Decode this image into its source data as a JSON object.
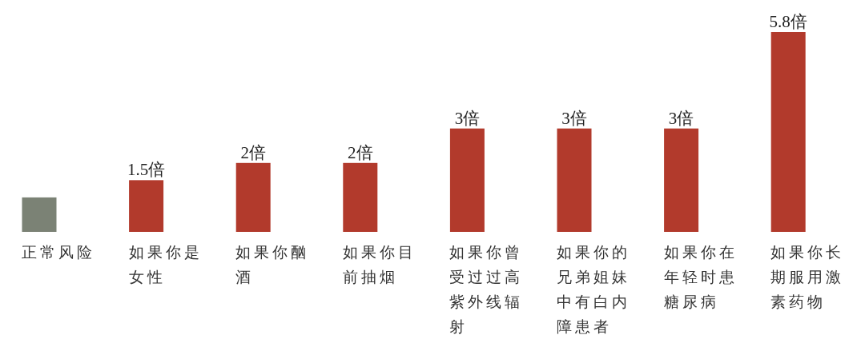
{
  "chart_data": {
    "type": "bar",
    "categories": [
      "正常风险",
      "如果你是女性",
      "如果你酗酒",
      "如果你目前抽烟",
      "如果你曾受过过高紫外线辐射",
      "如果你的兄弟姐妹中有白内障患者",
      "如果你在年轻时患糖尿病",
      "如果你长期服用激素药物"
    ],
    "values": [
      1,
      1.5,
      2,
      2,
      3,
      3,
      3,
      5.8
    ],
    "colors": [
      "#7b8275",
      "#b23a2c",
      "#b23a2c",
      "#b23a2c",
      "#b23a2c",
      "#b23a2c",
      "#b23a2c",
      "#b23a2c"
    ],
    "value_labels": [
      null,
      "1.5倍",
      "2倍",
      "2倍",
      "3倍",
      "3倍",
      "3倍",
      "5.8倍"
    ]
  }
}
